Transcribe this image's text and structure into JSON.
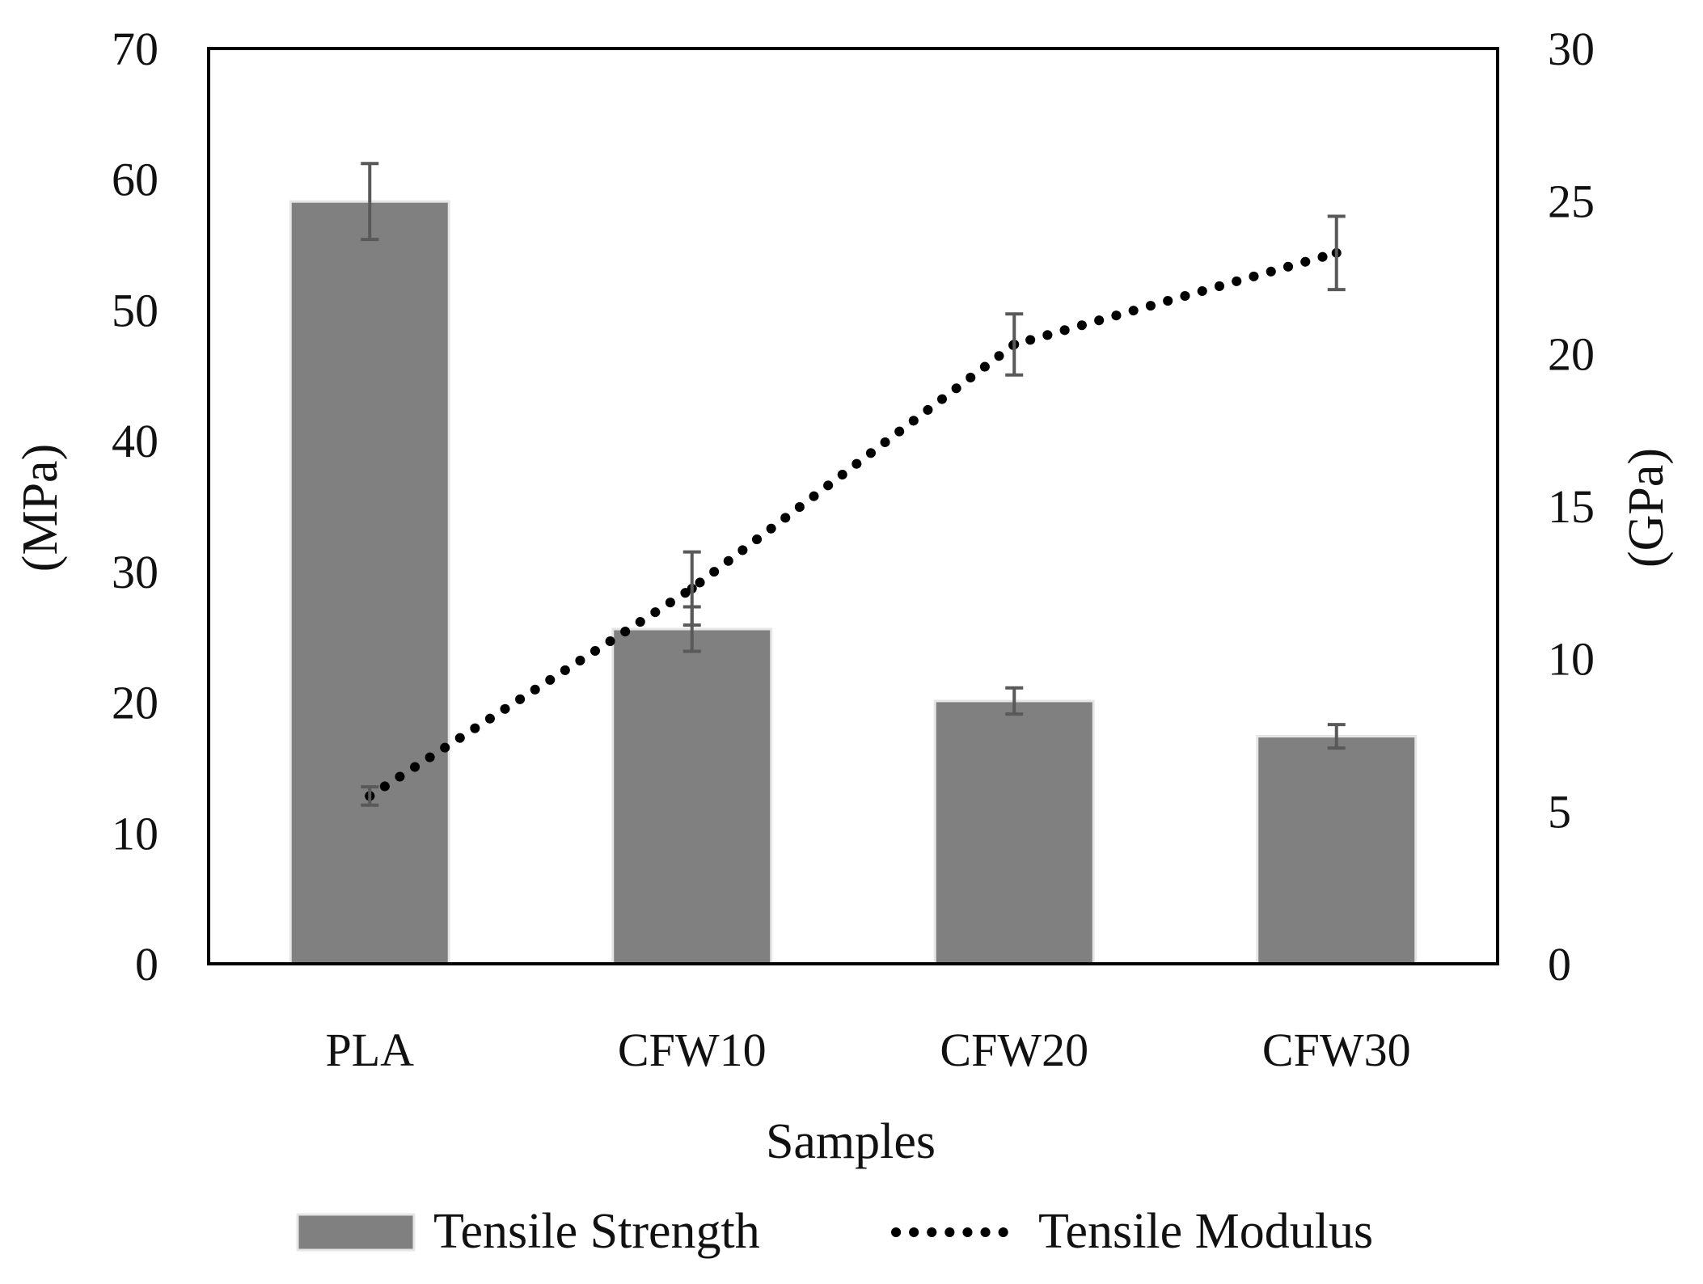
{
  "chart_data": {
    "type": "bar",
    "categories": [
      "PLA",
      "CFW10",
      "CFW20",
      "CFW30"
    ],
    "xlabel": "Samples",
    "ylabel": "(MPa)",
    "y2label": "(GPa)",
    "ylim": [
      0,
      70
    ],
    "y2lim": [
      0,
      30
    ],
    "yticks": [
      "0",
      "10",
      "20",
      "30",
      "40",
      "50",
      "60",
      "70"
    ],
    "y2ticks": [
      "0",
      "5",
      "10",
      "15",
      "20",
      "25",
      "30"
    ],
    "grid": false,
    "legend_position": "bottom",
    "series": [
      {
        "name": "Tensile Strength",
        "kind": "bar",
        "axis": "left",
        "values": [
          58.3,
          25.6,
          20.1,
          17.4
        ],
        "errors": [
          2.9,
          1.7,
          1.0,
          0.9
        ],
        "color": "#808080"
      },
      {
        "name": "Tensile Modulus",
        "kind": "line",
        "style": "dotted",
        "axis": "right",
        "values": [
          5.5,
          12.3,
          20.3,
          23.3
        ],
        "errors": [
          0.3,
          1.2,
          1.0,
          1.2
        ],
        "color": "#000000"
      }
    ]
  }
}
